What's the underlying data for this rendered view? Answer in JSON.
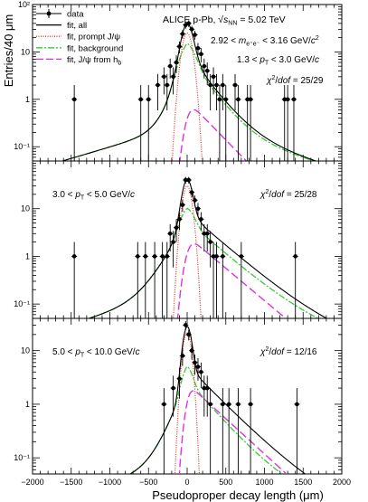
{
  "figure": {
    "title": "ALICE p-Pb, √s_NN = 5.02 TeV",
    "title_parts": {
      "main": "ALICE p-Pb, ",
      "sqrt": "√",
      "s": "s",
      "sub": "NN",
      "tail": " = 5.02 TeV"
    },
    "cut_mass": "2.92 < m_e⁺e⁻ < 3.16 GeV/c²",
    "cut_mass_parts": {
      "pre": "2.92 < ",
      "m": "m",
      "sub": "e⁺e⁻",
      "mid": " < 3.16 GeV/",
      "c": "c",
      "sup": "2"
    },
    "xlabel": "Pseudoproper decay length (μm)",
    "ylabel": "Entries/40 μm"
  },
  "legend": [
    {
      "key": "data",
      "label": "data",
      "color": "#000000",
      "style": "marker"
    },
    {
      "key": "fit_all",
      "label": "fit, all",
      "color": "#000000",
      "style": "solid"
    },
    {
      "key": "prompt",
      "label": "fit, prompt J/ψ",
      "color": "#e8352e",
      "style": "dotted"
    },
    {
      "key": "background",
      "label": "fit, background",
      "color": "#33cc33",
      "style": "dashdot"
    },
    {
      "key": "from_hb",
      "label": "fit, J/ψ from h_b",
      "label_main": "fit, J/ψ from h",
      "label_sub": "b",
      "color": "#dd33dd",
      "style": "dashed"
    }
  ],
  "chart_data": [
    {
      "type": "scatter",
      "panel": "top",
      "pt_range": "1.3 < p_T < 3.0 GeV/c",
      "pt_parts": {
        "pre": "1.3 < ",
        "p": "p",
        "sub": "T",
        "post": " < 3.0 GeV/",
        "c": "c"
      },
      "chi2": "χ²/dof = 25/29",
      "chi2_parts": {
        "chi": "χ",
        "sup": "2",
        "slash": "/",
        "dof": "dof",
        "value": " = 25/29"
      },
      "xlabel": "Pseudoproper decay length (μm)",
      "ylabel": "Entries/40 μm",
      "xlim": [
        -2000,
        2000
      ],
      "ylim": [
        0.05,
        100
      ],
      "yscale": "log",
      "yticks": [
        0.1,
        1,
        10,
        100
      ],
      "ytick_labels": [
        "10⁻¹",
        "1",
        "10",
        "10²"
      ],
      "data": {
        "x": [
          -1460,
          -600,
          -500,
          -380,
          -300,
          -260,
          -220,
          -180,
          -140,
          -100,
          -60,
          -20,
          20,
          60,
          100,
          140,
          180,
          220,
          260,
          300,
          340,
          380,
          420,
          460,
          500,
          620,
          660,
          780,
          820,
          1260,
          1300,
          1380
        ],
        "y": [
          1,
          1,
          1,
          2,
          3,
          2,
          5,
          3,
          6,
          13,
          24,
          37,
          40,
          30,
          23,
          12,
          9,
          5,
          4,
          2,
          3,
          2,
          1,
          2,
          1,
          2,
          1,
          1,
          1,
          1,
          1,
          1
        ]
      },
      "fit_all": {
        "norm": 40,
        "sigma": 55,
        "bg_norm": 15,
        "bg_left": 100,
        "bg_right": 190,
        "bg_sigma": 90,
        "hb_norm": 0.42,
        "hb_tau": 260
      },
      "fit_background": {
        "norm": 15,
        "left_decay": 100,
        "right_decay": 190,
        "core_sigma": 90
      },
      "fit_prompt": {
        "norm": 25,
        "sigma": 55
      },
      "fit_from_hb": {
        "norm": 0.42,
        "tau": 260,
        "sigma": 60
      }
    },
    {
      "type": "scatter",
      "panel": "middle",
      "pt_range": "3.0 < p_T < 5.0 GeV/c",
      "pt_parts": {
        "pre": "3.0 < ",
        "p": "p",
        "sub": "T",
        "post": " < 5.0 GeV/",
        "c": "c"
      },
      "chi2": "χ²/dof = 25/28",
      "chi2_parts": {
        "chi": "χ",
        "sup": "2",
        "slash": "/",
        "dof": "dof",
        "value": " = 25/28"
      },
      "xlabel": "Pseudoproper decay length (μm)",
      "ylabel": "Entries/40 μm",
      "xlim": [
        -2000,
        2000
      ],
      "ylim": [
        0.05,
        100
      ],
      "yscale": "log",
      "yticks": [
        0.1,
        1,
        10
      ],
      "ytick_labels": [
        "10⁻¹",
        "1",
        "10"
      ],
      "data": {
        "x": [
          -1460,
          -640,
          -540,
          -420,
          -320,
          -260,
          -220,
          -180,
          -140,
          -100,
          -60,
          -20,
          20,
          60,
          100,
          140,
          180,
          220,
          260,
          300,
          340,
          380,
          460,
          700,
          1400
        ],
        "y": [
          1,
          1,
          1,
          1,
          1,
          1,
          3,
          2,
          4,
          6,
          12,
          40,
          40,
          22,
          15,
          10,
          6,
          3,
          3,
          2,
          1,
          1,
          1,
          1,
          1
        ]
      },
      "fit_all": {
        "norm": 40,
        "sigma": 50,
        "bg_norm": 10,
        "bg_left": 150,
        "bg_right": 300,
        "bg_sigma": 80,
        "hb_norm": 1.2,
        "hb_tau": 320
      },
      "fit_background": {
        "norm": 10,
        "left_decay": 150,
        "right_decay": 300,
        "core_sigma": 80
      },
      "fit_prompt": {
        "norm": 30,
        "sigma": 50
      },
      "fit_from_hb": {
        "norm": 1.2,
        "tau": 320,
        "sigma": 60
      }
    },
    {
      "type": "scatter",
      "panel": "bottom",
      "pt_range": "5.0 < p_T < 10.0 GeV/c",
      "pt_parts": {
        "pre": "5.0 < ",
        "p": "p",
        "sub": "T",
        "post": " < 10.0 GeV/",
        "c": "c"
      },
      "chi2": "χ²/dof = 12/16",
      "chi2_parts": {
        "chi": "χ",
        "sup": "2",
        "slash": "/",
        "dof": "dof",
        "value": " = 12/16"
      },
      "xlabel": "Pseudoproper decay length (μm)",
      "ylabel": "Entries/40 μm",
      "xlim": [
        -2000,
        2000
      ],
      "ylim": [
        0.05,
        40
      ],
      "yscale": "log",
      "yticks": [
        0.1,
        1,
        10
      ],
      "ytick_labels": [
        "10⁻¹",
        "1",
        "10"
      ],
      "xticks": [
        -2000,
        -1500,
        -1000,
        -500,
        0,
        500,
        1000,
        1500,
        2000
      ],
      "xtick_labels": [
        "−2000",
        "−1500",
        "−1000",
        "−500",
        "0",
        "500",
        "1000",
        "1500",
        "2000"
      ],
      "data": {
        "x": [
          -300,
          -180,
          -100,
          -60,
          -20,
          20,
          60,
          100,
          140,
          180,
          220,
          260,
          300,
          460,
          540,
          660,
          820,
          1420
        ],
        "y": [
          1,
          2,
          3,
          8,
          30,
          20,
          10,
          6,
          5,
          4,
          2,
          2,
          1,
          1,
          1,
          1,
          1,
          1
        ]
      },
      "fit_all": {
        "norm": 28,
        "sigma": 45,
        "bg_norm": 5,
        "bg_left": 120,
        "bg_right": 260,
        "bg_sigma": 60,
        "hb_norm": 1.1,
        "hb_tau": 330
      },
      "fit_background": {
        "norm": 5,
        "left_decay": 120,
        "right_decay": 260,
        "core_sigma": 60
      },
      "fit_prompt": {
        "norm": 22,
        "sigma": 45
      },
      "fit_from_hb": {
        "norm": 1.1,
        "tau": 330,
        "sigma": 50
      }
    }
  ]
}
